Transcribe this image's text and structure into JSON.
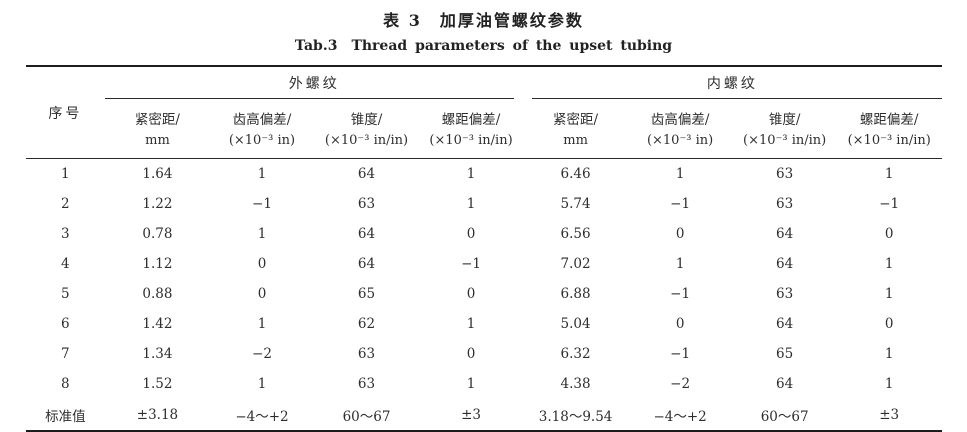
{
  "page": {
    "background": "#ffffff",
    "text_color": "#2e2e2e",
    "rule_color": "#1d1d1d"
  },
  "title": {
    "zh": "表 3　加厚油管螺纹参数",
    "en_label": "Tab.3",
    "en_text": "Thread parameters of the upset tubing"
  },
  "table": {
    "corner": "序号",
    "groups": {
      "ext": "外螺纹",
      "int": "内螺纹"
    },
    "subheaders": [
      {
        "l1": "紧密距/",
        "l2": "mm"
      },
      {
        "l1": "齿高偏差/",
        "l2": "(×10⁻³ in)"
      },
      {
        "l1": "锥度/",
        "l2": "(×10⁻³ in/in)"
      },
      {
        "l1": "螺距偏差/",
        "l2": "(×10⁻³ in/in)"
      },
      {
        "l1": "紧密距/",
        "l2": "mm"
      },
      {
        "l1": "齿高偏差/",
        "l2": "(×10⁻³ in)"
      },
      {
        "l1": "锥度/",
        "l2": "(×10⁻³ in/in)"
      },
      {
        "l1": "螺距偏差/",
        "l2": "(×10⁻³ in/in)"
      }
    ],
    "rows": [
      {
        "label": "1",
        "cells": [
          "1.64",
          "1",
          "64",
          "1",
          "6.46",
          "1",
          "63",
          "1"
        ]
      },
      {
        "label": "2",
        "cells": [
          "1.22",
          "−1",
          "63",
          "1",
          "5.74",
          "−1",
          "63",
          "−1"
        ]
      },
      {
        "label": "3",
        "cells": [
          "0.78",
          "1",
          "64",
          "0",
          "6.56",
          "0",
          "64",
          "0"
        ]
      },
      {
        "label": "4",
        "cells": [
          "1.12",
          "0",
          "64",
          "−1",
          "7.02",
          "1",
          "64",
          "1"
        ]
      },
      {
        "label": "5",
        "cells": [
          "0.88",
          "0",
          "65",
          "0",
          "6.88",
          "−1",
          "63",
          "1"
        ]
      },
      {
        "label": "6",
        "cells": [
          "1.42",
          "1",
          "62",
          "1",
          "5.04",
          "0",
          "64",
          "0"
        ]
      },
      {
        "label": "7",
        "cells": [
          "1.34",
          "−2",
          "63",
          "0",
          "6.32",
          "−1",
          "65",
          "1"
        ]
      },
      {
        "label": "8",
        "cells": [
          "1.52",
          "1",
          "63",
          "1",
          "4.38",
          "−2",
          "64",
          "1"
        ]
      },
      {
        "label": "标准值",
        "cells": [
          "±3.18",
          "−4～+2",
          "60～67",
          "±3",
          "3.18～9.54",
          "−4～+2",
          "60～67",
          "±3"
        ]
      }
    ]
  }
}
